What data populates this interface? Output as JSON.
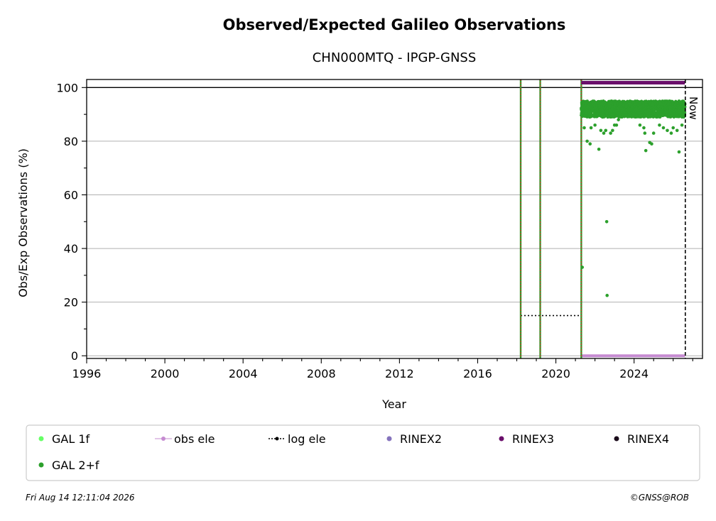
{
  "chart_data": {
    "type": "scatter",
    "title": "Observed/Expected Galileo Observations",
    "subtitle": "CHN000MTQ - IPGP-GNSS",
    "xlabel": "Year",
    "ylabel": "Obs/Exp Observations (%)",
    "xlim": [
      1996,
      2027.5
    ],
    "ylim": [
      -1,
      103
    ],
    "xticks": [
      "1996",
      "2000",
      "2004",
      "2008",
      "2012",
      "2016",
      "2020",
      "2024"
    ],
    "yticks": [
      "0",
      "20",
      "40",
      "60",
      "80",
      "100"
    ],
    "grid": "horizontal",
    "reference_line_y": 100,
    "vertical_events": [
      2018.2,
      2019.2,
      2021.3
    ],
    "now_marker": {
      "x": 2026.62,
      "label": "Now"
    },
    "log_ele_series": {
      "x": [
        2018.2,
        2021.3,
        2021.3
      ],
      "y": [
        15,
        15,
        0
      ]
    },
    "rinex3_span": {
      "x": [
        2021.3,
        2026.6
      ],
      "y": 101.8
    },
    "obs_ele_span": {
      "x": [
        2021.3,
        2026.6
      ],
      "y": 0
    },
    "gal_2f": {
      "range": [
        2021.3,
        2026.6
      ],
      "band_low": 89,
      "band_high": 95,
      "outliers": [
        [
          2021.35,
          33
        ],
        [
          2021.45,
          85
        ],
        [
          2021.6,
          80
        ],
        [
          2021.75,
          79
        ],
        [
          2021.8,
          85
        ],
        [
          2022.0,
          86
        ],
        [
          2022.2,
          77
        ],
        [
          2022.3,
          84
        ],
        [
          2022.45,
          83
        ],
        [
          2022.55,
          84
        ],
        [
          2022.6,
          50
        ],
        [
          2022.62,
          22.5
        ],
        [
          2022.8,
          83
        ],
        [
          2022.9,
          84
        ],
        [
          2023.0,
          86
        ],
        [
          2023.1,
          86
        ],
        [
          2023.2,
          88
        ],
        [
          2024.3,
          86
        ],
        [
          2024.5,
          85
        ],
        [
          2024.55,
          83
        ],
        [
          2024.6,
          76.5
        ],
        [
          2024.8,
          79.5
        ],
        [
          2024.9,
          79
        ],
        [
          2025.0,
          83
        ],
        [
          2025.3,
          86
        ],
        [
          2025.5,
          85
        ],
        [
          2025.7,
          84
        ],
        [
          2025.9,
          83
        ],
        [
          2026.0,
          85
        ],
        [
          2026.2,
          84
        ],
        [
          2026.3,
          76
        ],
        [
          2026.45,
          86
        ]
      ]
    },
    "legend": {
      "placement": "bottom",
      "entries": [
        {
          "label": "GAL 1f",
          "color": "#66ff66",
          "style": "dot"
        },
        {
          "label": "obs ele",
          "color": "#c58bd1",
          "style": "line-dot"
        },
        {
          "label": "log ele",
          "color": "#000000",
          "style": "dotted-line-dot"
        },
        {
          "label": "RINEX2",
          "color": "#8573bd",
          "style": "dot"
        },
        {
          "label": "RINEX3",
          "color": "#6a0f6b",
          "style": "dot"
        },
        {
          "label": "RINEX4",
          "color": "#1a0a1a",
          "style": "dot"
        },
        {
          "label": "GAL 2+f",
          "color": "#2ca02c",
          "style": "dot"
        }
      ]
    }
  },
  "colors": {
    "gal2f": "#2ca02c",
    "rinex3": "#6a0f6b",
    "obs_ele": "#c58bd1",
    "event_green": "#2ca02c",
    "event_red": "#d62728",
    "grid": "#b0b0b0"
  },
  "footer": {
    "left": "Fri Aug 14 12:11:04 2026",
    "right": "©GNSS@ROB"
  }
}
